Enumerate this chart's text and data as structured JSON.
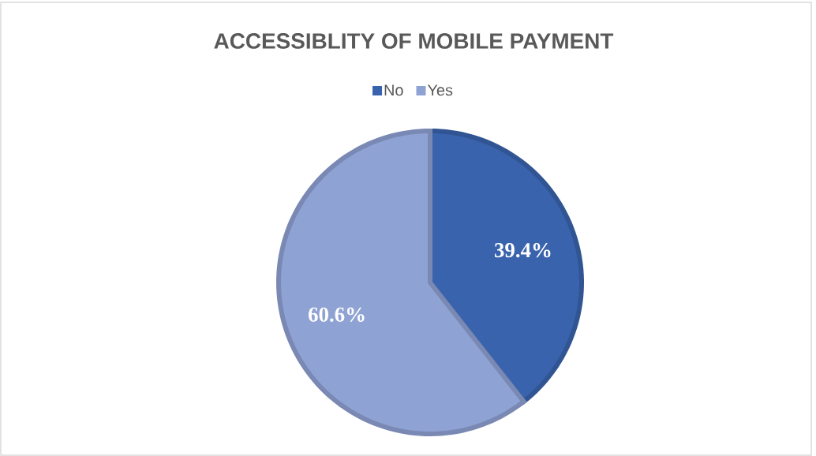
{
  "chart_data": {
    "type": "pie",
    "title": "ACCESSIBLITY OF MOBILE PAYMENT",
    "categories": [
      "No",
      "Yes"
    ],
    "values": [
      39.4,
      60.6
    ],
    "colors": [
      "#3a63ad",
      "#8fa2d4"
    ],
    "value_labels": [
      "39.4%",
      "60.6%"
    ],
    "legend": "top"
  }
}
